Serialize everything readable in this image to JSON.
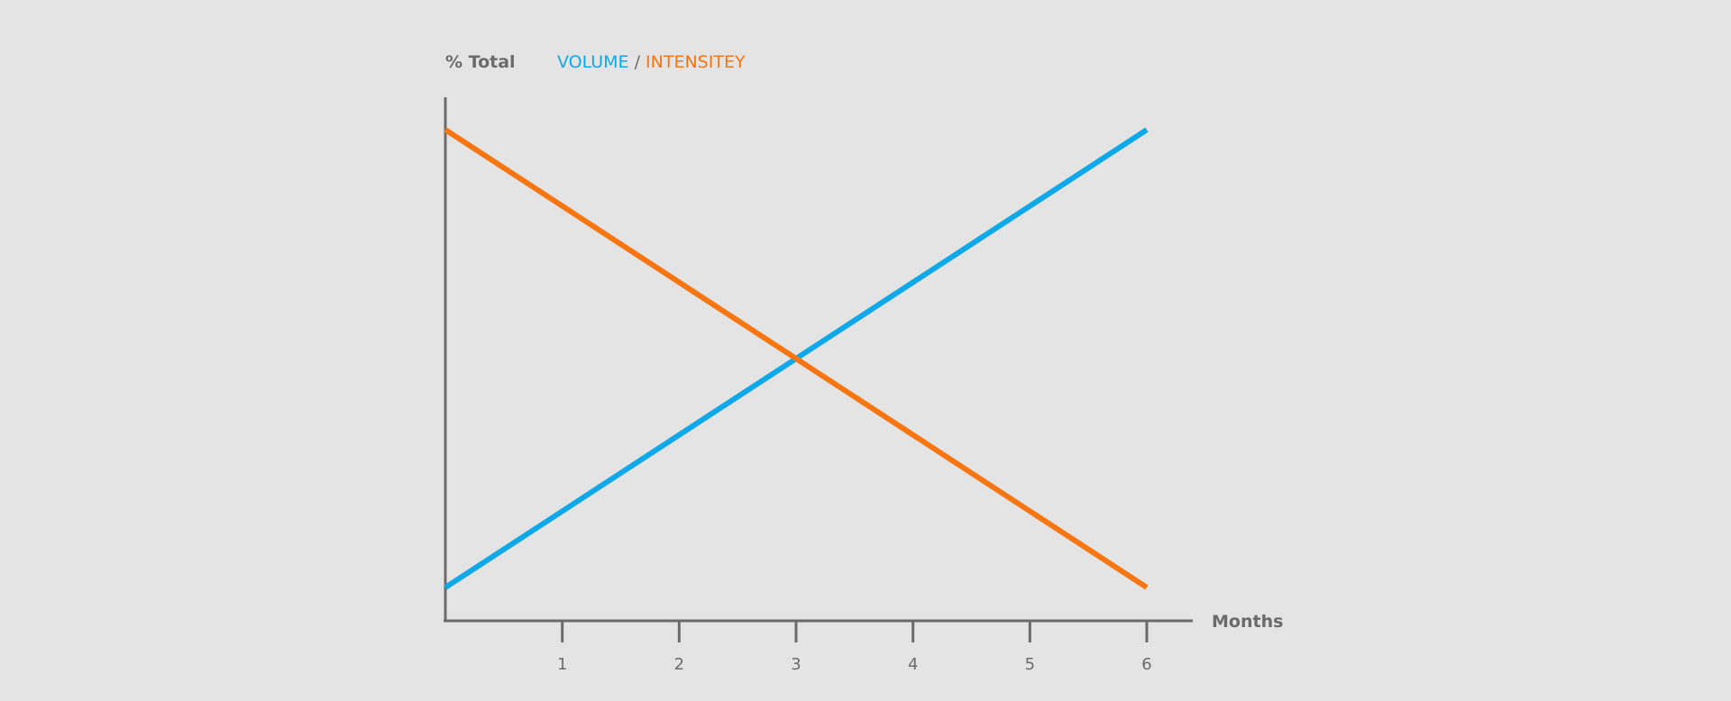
{
  "chart_data": {
    "type": "line",
    "ylabel": "% Total",
    "xlabel": "Months",
    "x_ticks": [
      "1",
      "2",
      "3",
      "4",
      "5",
      "6"
    ],
    "xlim": [
      0,
      6
    ],
    "ylim": [
      0,
      100
    ],
    "grid": false,
    "legend_position": "top",
    "legend_separator": "/",
    "series": [
      {
        "name": "VOLUME",
        "color": "#0fa9e9",
        "x": [
          0,
          6
        ],
        "y": [
          8,
          94
        ]
      },
      {
        "name": "INTENSITEY",
        "color": "#f77611",
        "x": [
          0,
          6
        ],
        "y": [
          94,
          8
        ]
      }
    ],
    "axis_color": "#6b6b6b"
  }
}
